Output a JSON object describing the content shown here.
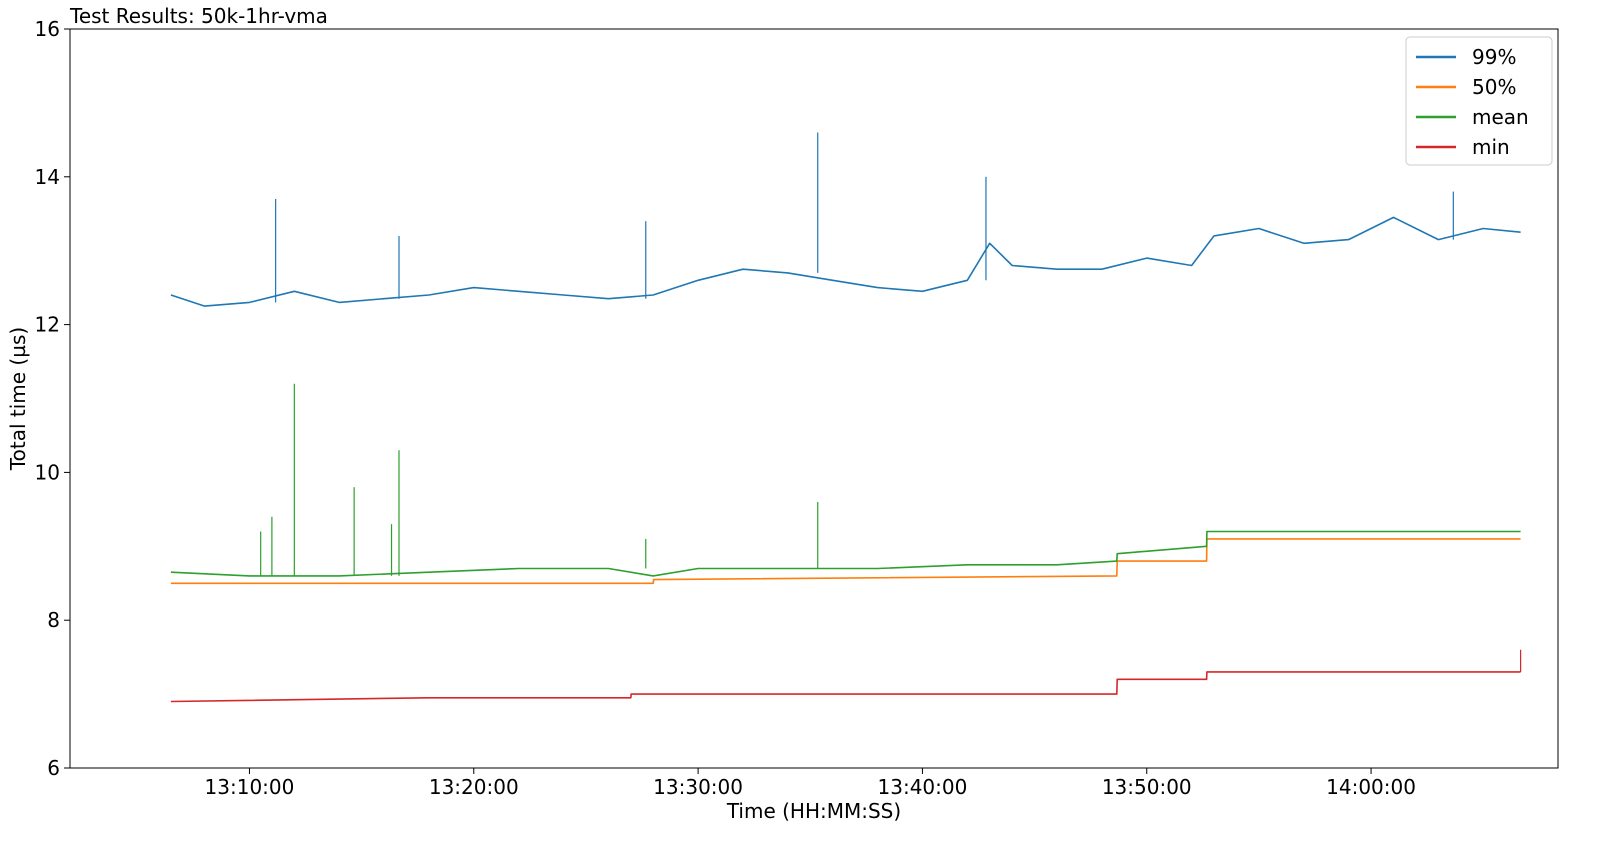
{
  "chart_data": {
    "type": "line",
    "title": "Test Results: 50k-1hr-vma",
    "xlabel": "Time (HH:MM:SS)",
    "ylabel": "Total time (µs)",
    "xlim": [
      "13:02:00",
      "14:08:20"
    ],
    "ylim": [
      6,
      16
    ],
    "x_ticks": [
      "13:10:00",
      "13:20:00",
      "13:30:00",
      "13:40:00",
      "13:50:00",
      "14:00:00"
    ],
    "y_ticks": [
      6,
      8,
      10,
      12,
      14,
      16
    ],
    "grid": false,
    "legend_position": "top-right",
    "series": [
      {
        "name": "99%",
        "color": "#1f77b4",
        "x": [
          "13:06:30",
          "13:08:00",
          "13:10:00",
          "13:12:00",
          "13:14:00",
          "13:16:00",
          "13:18:00",
          "13:20:00",
          "13:22:00",
          "13:24:00",
          "13:26:00",
          "13:28:00",
          "13:30:00",
          "13:32:00",
          "13:34:00",
          "13:36:00",
          "13:38:00",
          "13:40:00",
          "13:42:00",
          "13:43:00",
          "13:44:00",
          "13:46:00",
          "13:48:00",
          "13:50:00",
          "13:52:00",
          "13:53:00",
          "13:55:00",
          "13:57:00",
          "13:59:00",
          "14:01:00",
          "14:03:00",
          "14:05:00",
          "14:06:40"
        ],
        "values": [
          12.4,
          12.25,
          12.3,
          12.45,
          12.3,
          12.35,
          12.4,
          12.5,
          12.45,
          12.4,
          12.35,
          12.4,
          12.6,
          12.75,
          12.7,
          12.6,
          12.5,
          12.45,
          12.6,
          13.1,
          12.8,
          12.75,
          12.75,
          12.9,
          12.8,
          13.2,
          13.3,
          13.1,
          13.15,
          13.45,
          13.15,
          13.3,
          13.25
        ],
        "spikes": [
          {
            "x": "13:11:10",
            "y": 13.7
          },
          {
            "x": "13:16:40",
            "y": 13.2
          },
          {
            "x": "13:27:40",
            "y": 13.4
          },
          {
            "x": "13:35:20",
            "y": 14.6
          },
          {
            "x": "13:42:50",
            "y": 14.0
          },
          {
            "x": "14:03:40",
            "y": 13.8
          }
        ]
      },
      {
        "name": "50%",
        "color": "#ff7f0e",
        "x": [
          "13:06:30",
          "13:18:00",
          "13:18:01",
          "13:28:00",
          "13:28:01",
          "13:48:40",
          "13:48:41",
          "13:52:40",
          "13:52:41",
          "14:06:40"
        ],
        "values": [
          8.5,
          8.5,
          8.5,
          8.5,
          8.55,
          8.6,
          8.8,
          8.8,
          9.1,
          9.1
        ],
        "spikes": []
      },
      {
        "name": "mean",
        "color": "#2ca02c",
        "x": [
          "13:06:30",
          "13:10:00",
          "13:14:00",
          "13:18:00",
          "13:22:00",
          "13:26:00",
          "13:28:00",
          "13:30:00",
          "13:34:00",
          "13:38:00",
          "13:42:00",
          "13:46:00",
          "13:48:40",
          "13:48:41",
          "13:52:40",
          "13:52:41",
          "14:06:40"
        ],
        "values": [
          8.65,
          8.6,
          8.6,
          8.65,
          8.7,
          8.7,
          8.6,
          8.7,
          8.7,
          8.7,
          8.75,
          8.75,
          8.8,
          8.9,
          9.0,
          9.2,
          9.2
        ],
        "spikes": [
          {
            "x": "13:10:30",
            "y": 9.2
          },
          {
            "x": "13:11:00",
            "y": 9.4
          },
          {
            "x": "13:12:00",
            "y": 11.2
          },
          {
            "x": "13:14:40",
            "y": 9.8
          },
          {
            "x": "13:16:20",
            "y": 9.3
          },
          {
            "x": "13:16:40",
            "y": 10.3
          },
          {
            "x": "13:27:40",
            "y": 9.1
          },
          {
            "x": "13:35:20",
            "y": 9.6
          }
        ]
      },
      {
        "name": "min",
        "color": "#d62728",
        "x": [
          "13:06:30",
          "13:18:00",
          "13:27:00",
          "13:27:01",
          "13:48:40",
          "13:48:41",
          "13:52:40",
          "13:52:41",
          "14:06:40"
        ],
        "values": [
          6.9,
          6.95,
          6.95,
          7.0,
          7.0,
          7.2,
          7.2,
          7.3,
          7.3
        ],
        "spikes": [
          {
            "x": "14:06:40",
            "y": 7.6
          }
        ]
      }
    ]
  }
}
